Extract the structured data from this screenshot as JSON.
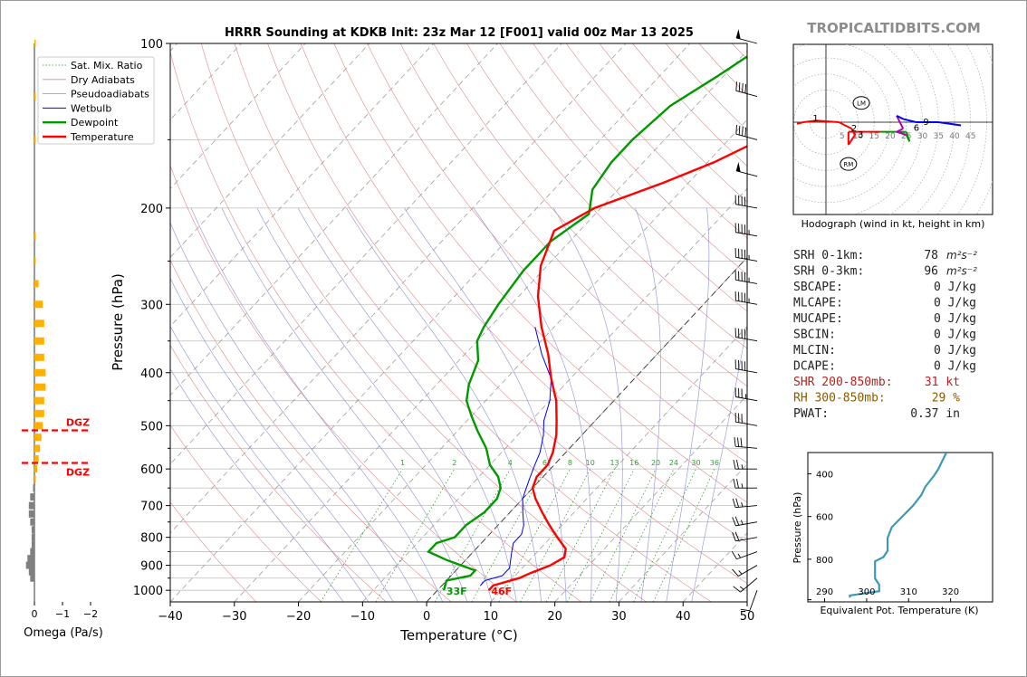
{
  "chart_data": {
    "type": "line",
    "title": "HRRR Sounding at KDKB Init: 23z Mar 12 [F001] valid 00z Mar 13 2025",
    "brand": "TROPICALTIDBITS.COM",
    "xlabel": "Temperature (°C)",
    "ylabel": "Pressure (hPa)",
    "xlim": [
      -40,
      50
    ],
    "ylim": [
      1050,
      100
    ],
    "x_ticks": [
      "−40",
      "−30",
      "−20",
      "−10",
      "0",
      "10",
      "20",
      "30",
      "40",
      "50"
    ],
    "y_ticks": [
      "100",
      "200",
      "300",
      "400",
      "500",
      "600",
      "700",
      "800",
      "900",
      "1000"
    ],
    "legend": [
      "Sat. Mix. Ratio",
      "Dry Adiabats",
      "Pseudoadiabats",
      "Wetbulb",
      "Dewpoint",
      "Temperature"
    ],
    "legend_position": "top-left",
    "mixing_ratio_labels": [
      "1",
      "2",
      "4",
      "6",
      "8",
      "10",
      "13",
      "16",
      "20",
      "24",
      "30",
      "36"
    ],
    "surface_labels": {
      "dewpoint": "33F",
      "temperature": "46F"
    },
    "colors": {
      "temperature": "#ff0000",
      "dewpoint": "#009900",
      "wetbulb": "#0000ff",
      "theta_e": "#3a9ab5",
      "dgz": "#ff0000",
      "omega_pos": "#ffb000",
      "omega_neg": "#808080",
      "srh": "#222222",
      "shr": "#b22222",
      "rh": "#8b5a00"
    },
    "series": [
      {
        "name": "Temperature",
        "points": [
          [
            8,
            1000
          ],
          [
            8,
            980
          ],
          [
            11,
            950
          ],
          [
            12,
            930
          ],
          [
            14,
            900
          ],
          [
            15,
            870
          ],
          [
            14,
            840
          ],
          [
            11,
            800
          ],
          [
            8,
            760
          ],
          [
            5,
            720
          ],
          [
            2,
            680
          ],
          [
            0,
            650
          ],
          [
            -1,
            620
          ],
          [
            -1,
            590
          ],
          [
            -2,
            560
          ],
          [
            -4,
            520
          ],
          [
            -6,
            490
          ],
          [
            -9,
            450
          ],
          [
            -13,
            410
          ],
          [
            -17,
            370
          ],
          [
            -22,
            330
          ],
          [
            -27,
            290
          ],
          [
            -31,
            255
          ],
          [
            -34,
            220
          ],
          [
            -31,
            200
          ],
          [
            -24,
            180
          ],
          [
            -19,
            165
          ],
          [
            -15,
            150
          ],
          [
            -12,
            140
          ],
          [
            -8,
            125
          ],
          [
            -5,
            112
          ],
          [
            -3,
            100
          ]
        ]
      },
      {
        "name": "Dewpoint",
        "points": [
          [
            1,
            1000
          ],
          [
            0,
            960
          ],
          [
            3,
            940
          ],
          [
            3,
            920
          ],
          [
            -3,
            880
          ],
          [
            -7,
            850
          ],
          [
            -7,
            820
          ],
          [
            -5,
            800
          ],
          [
            -5,
            760
          ],
          [
            -4,
            720
          ],
          [
            -4,
            680
          ],
          [
            -5,
            650
          ],
          [
            -7,
            620
          ],
          [
            -10,
            590
          ],
          [
            -13,
            550
          ],
          [
            -17,
            510
          ],
          [
            -20,
            480
          ],
          [
            -23,
            450
          ],
          [
            -25,
            420
          ],
          [
            -27,
            380
          ],
          [
            -30,
            350
          ],
          [
            -31,
            330
          ],
          [
            -32,
            300
          ],
          [
            -33,
            260
          ],
          [
            -33,
            230
          ],
          [
            -31,
            205
          ],
          [
            -34,
            185
          ],
          [
            -35,
            165
          ],
          [
            -35,
            150
          ],
          [
            -34,
            130
          ],
          [
            -31,
            115
          ],
          [
            -28,
            100
          ]
        ]
      },
      {
        "name": "Wetbulb",
        "points": [
          [
            6,
            980
          ],
          [
            6,
            960
          ],
          [
            8,
            940
          ],
          [
            8,
            910
          ],
          [
            7,
            880
          ],
          [
            6,
            850
          ],
          [
            5,
            820
          ],
          [
            5,
            790
          ],
          [
            4,
            760
          ],
          [
            2,
            720
          ],
          [
            0,
            680
          ],
          [
            -1,
            650
          ],
          [
            -2,
            620
          ],
          [
            -3,
            590
          ],
          [
            -4,
            560
          ],
          [
            -6,
            520
          ],
          [
            -8,
            490
          ],
          [
            -10,
            450
          ],
          [
            -13,
            410
          ],
          [
            -18,
            370
          ],
          [
            -23,
            330
          ]
        ]
      }
    ],
    "omega": {
      "label": "Omega (Pa/s)",
      "ticks": [
        "0",
        "−1",
        "−2"
      ],
      "dgz_label": "DGZ",
      "dgz_top": 510,
      "dgz_bottom": 585,
      "bars": [
        [
          100,
          -0.05
        ],
        [
          125,
          -0.1
        ],
        [
          150,
          -0.1
        ],
        [
          225,
          -0.1
        ],
        [
          250,
          -0.1
        ],
        [
          275,
          -0.3
        ],
        [
          300,
          -0.6
        ],
        [
          325,
          -0.7
        ],
        [
          350,
          -0.7
        ],
        [
          375,
          -0.7
        ],
        [
          400,
          -0.8
        ],
        [
          425,
          -0.8
        ],
        [
          450,
          -0.7
        ],
        [
          475,
          -0.7
        ],
        [
          500,
          -0.6
        ],
        [
          525,
          -0.5
        ],
        [
          550,
          -0.4
        ],
        [
          575,
          -0.3
        ],
        [
          600,
          -0.2
        ],
        [
          625,
          -0.1
        ],
        [
          650,
          0.1
        ],
        [
          675,
          0.3
        ],
        [
          700,
          0.4
        ],
        [
          725,
          0.4
        ],
        [
          750,
          0.3
        ],
        [
          775,
          0.2
        ],
        [
          800,
          0.2
        ],
        [
          825,
          0.2
        ],
        [
          850,
          0.3
        ],
        [
          875,
          0.5
        ],
        [
          900,
          0.6
        ],
        [
          925,
          0.4
        ],
        [
          950,
          0.3
        ]
      ]
    },
    "hodograph": {
      "caption": "Hodograph (wind in kt, height in km)",
      "ring_labels": [
        "5",
        "10",
        "15",
        "20",
        "25",
        "30",
        "35",
        "40",
        "45"
      ],
      "storm_labels": [
        "LM",
        "RM"
      ],
      "height_labels": [
        "1",
        "2",
        "3",
        "6",
        "9"
      ],
      "points": [
        [
          -9,
          -0.5
        ],
        [
          -7,
          0
        ],
        [
          -3,
          0.5
        ],
        [
          4,
          0
        ],
        [
          8,
          -2
        ],
        [
          9,
          -4
        ],
        [
          7,
          -7
        ],
        [
          7,
          -3
        ],
        [
          17,
          -3
        ],
        [
          22,
          -3
        ],
        [
          25,
          -3
        ],
        [
          26,
          -6
        ],
        [
          25,
          -4
        ],
        [
          22,
          -3
        ],
        [
          24,
          -2
        ],
        [
          22,
          2
        ],
        [
          24,
          1
        ],
        [
          28,
          0
        ],
        [
          35,
          0
        ],
        [
          42,
          -1
        ]
      ],
      "lm": [
        11,
        6
      ],
      "rm": [
        7,
        -13
      ]
    },
    "indices": [
      {
        "label": "SRH 0-1km:",
        "value": "78",
        "unit": "m²s⁻²",
        "color": "srh"
      },
      {
        "label": "SRH 0-3km:",
        "value": "96",
        "unit": "m²s⁻²",
        "color": "srh"
      },
      {
        "label": "SBCAPE:",
        "value": "0 J/kg",
        "unit": "",
        "color": "srh"
      },
      {
        "label": "MLCAPE:",
        "value": "0 J/kg",
        "unit": "",
        "color": "srh"
      },
      {
        "label": "MUCAPE:",
        "value": "0 J/kg",
        "unit": "",
        "color": "srh"
      },
      {
        "label": "SBCIN:",
        "value": "0 J/kg",
        "unit": "",
        "color": "srh"
      },
      {
        "label": "MLCIN:",
        "value": "0 J/kg",
        "unit": "",
        "color": "srh"
      },
      {
        "label": "DCAPE:",
        "value": "0 J/kg",
        "unit": "",
        "color": "srh"
      },
      {
        "label": "SHR 200-850mb:",
        "value": "31 kt",
        "unit": "",
        "color": "shr"
      },
      {
        "label": "RH 300-850mb:",
        "value": "29 %",
        "unit": "",
        "color": "rh"
      },
      {
        "label": "PWAT:",
        "value": "0.37 in",
        "unit": "",
        "color": "srh"
      }
    ],
    "theta_e": {
      "xlabel": "Equivalent Pot. Temperature (K)",
      "ylabel": "Pressure (hPa)",
      "x_ticks": [
        "290",
        "300",
        "310",
        "320"
      ],
      "y_ticks": [
        "400",
        "600",
        "800"
      ],
      "xlim": [
        286,
        330
      ],
      "ylim": [
        1000,
        300
      ],
      "points": [
        [
          296,
          980
        ],
        [
          296,
          970
        ],
        [
          303,
          950
        ],
        [
          303,
          920
        ],
        [
          302,
          890
        ],
        [
          302,
          850
        ],
        [
          302,
          810
        ],
        [
          304,
          790
        ],
        [
          305,
          760
        ],
        [
          305,
          700
        ],
        [
          306,
          650
        ],
        [
          309,
          590
        ],
        [
          311,
          550
        ],
        [
          313,
          500
        ],
        [
          314,
          460
        ],
        [
          316,
          410
        ],
        [
          317,
          380
        ],
        [
          318,
          340
        ],
        [
          319,
          300
        ]
      ]
    },
    "wind_barbs": [
      {
        "p": 1000,
        "spd": 10,
        "dir": 200
      },
      {
        "p": 950,
        "spd": 15,
        "dir": 230
      },
      {
        "p": 900,
        "spd": 15,
        "dir": 240
      },
      {
        "p": 850,
        "spd": 15,
        "dir": 250
      },
      {
        "p": 800,
        "spd": 20,
        "dir": 260
      },
      {
        "p": 750,
        "spd": 25,
        "dir": 260
      },
      {
        "p": 700,
        "spd": 25,
        "dir": 265
      },
      {
        "p": 650,
        "spd": 25,
        "dir": 270
      },
      {
        "p": 600,
        "spd": 25,
        "dir": 270
      },
      {
        "p": 550,
        "spd": 30,
        "dir": 275
      },
      {
        "p": 500,
        "spd": 30,
        "dir": 280
      },
      {
        "p": 450,
        "spd": 35,
        "dir": 280
      },
      {
        "p": 400,
        "spd": 40,
        "dir": 280
      },
      {
        "p": 350,
        "spd": 40,
        "dir": 280
      },
      {
        "p": 300,
        "spd": 45,
        "dir": 280
      },
      {
        "p": 275,
        "spd": 45,
        "dir": 280
      },
      {
        "p": 250,
        "spd": 45,
        "dir": 280
      },
      {
        "p": 225,
        "spd": 45,
        "dir": 280
      },
      {
        "p": 200,
        "spd": 40,
        "dir": 280
      },
      {
        "p": 175,
        "spd": 50,
        "dir": 285
      },
      {
        "p": 150,
        "spd": 40,
        "dir": 285
      },
      {
        "p": 125,
        "spd": 40,
        "dir": 285
      },
      {
        "p": 100,
        "spd": 50,
        "dir": 285
      }
    ]
  }
}
